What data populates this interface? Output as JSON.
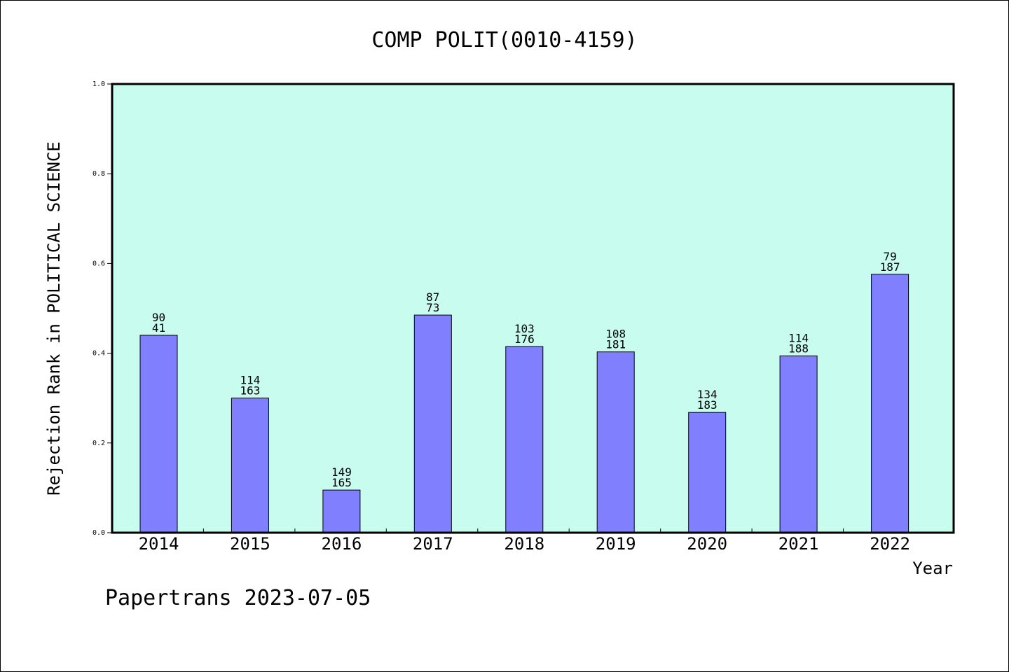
{
  "chart_data": {
    "type": "bar",
    "title": "COMP POLIT(0010-4159)",
    "xlabel": "Year",
    "ylabel": "Rejection Rank in POLITICAL SCIENCE",
    "ylim": [
      0,
      1.0
    ],
    "yticks": [
      "0.0",
      "0.2",
      "0.4",
      "0.6",
      "0.8",
      "1.0"
    ],
    "categories": [
      "2014",
      "2015",
      "2016",
      "2017",
      "2018",
      "2019",
      "2020",
      "2021",
      "2022"
    ],
    "values": [
      0.44,
      0.3,
      0.095,
      0.485,
      0.415,
      0.403,
      0.268,
      0.394,
      0.576
    ],
    "labels_top": [
      "90",
      "114",
      "149",
      "87",
      "103",
      "108",
      "134",
      "114",
      "79"
    ],
    "labels_bottom": [
      "41",
      "163",
      "165",
      "73",
      "176",
      "181",
      "183",
      "188",
      "187"
    ],
    "grid": false,
    "colors": {
      "plot_background": "#c8fcee",
      "bar_fill": "#8080ff",
      "bar_stroke": "#000000"
    }
  },
  "footer": {
    "text": "Papertrans 2023-07-05"
  }
}
